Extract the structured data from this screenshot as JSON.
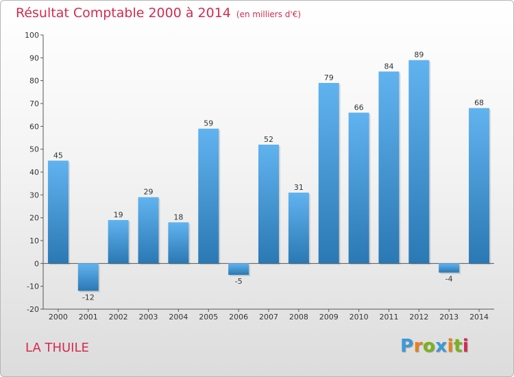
{
  "chart_data": {
    "type": "bar",
    "title": "Résultat Comptable 2000 à 2014",
    "subtitle": "(en milliers d'€)",
    "xlabel": "",
    "ylabel": "",
    "categories": [
      "2000",
      "2001",
      "2002",
      "2003",
      "2004",
      "2005",
      "2006",
      "2007",
      "2008",
      "2009",
      "2010",
      "2011",
      "2012",
      "2013",
      "2014"
    ],
    "values": [
      45,
      -12,
      19,
      29,
      18,
      59,
      -5,
      52,
      31,
      79,
      66,
      84,
      89,
      -4,
      68
    ],
    "ylim": [
      -20,
      100
    ],
    "yticks": [
      -20,
      -10,
      0,
      10,
      20,
      30,
      40,
      50,
      60,
      70,
      80,
      90,
      100
    ],
    "grid": false,
    "legend": "none"
  },
  "commune": "LA THUILE",
  "logo": {
    "letters": [
      "P",
      "r",
      "o",
      "x",
      "i",
      "t",
      "i"
    ],
    "colors": [
      "#3b9ad9",
      "#e8801e",
      "#7ab317",
      "#3b9ad9",
      "#e8801e",
      "#7ab317",
      "#d6294e"
    ]
  },
  "colors": {
    "title": "#d6294e",
    "bar_light": "#61b3ef",
    "bar_dark": "#2a78b4",
    "axis": "#555555"
  }
}
